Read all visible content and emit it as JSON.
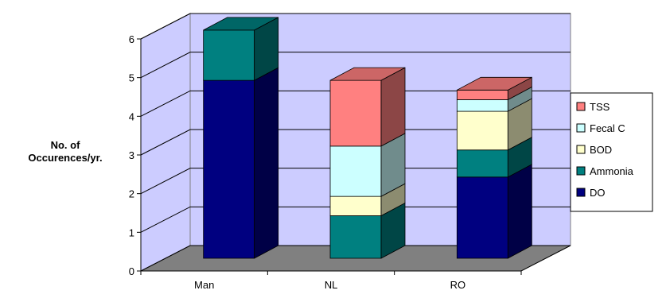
{
  "chart_data": {
    "type": "bar",
    "stacked": true,
    "three_d": true,
    "categories": [
      "Man",
      "NL",
      "RO"
    ],
    "series": [
      {
        "name": "DO",
        "color": "#000080",
        "values": [
          4.6,
          0,
          2.1
        ]
      },
      {
        "name": "Ammonia",
        "color": "#008080",
        "values": [
          1.3,
          1.1,
          0.7
        ]
      },
      {
        "name": "BOD",
        "color": "#ffffcc",
        "values": [
          0,
          0.5,
          1.0
        ]
      },
      {
        "name": "Fecal C",
        "color": "#ccffff",
        "values": [
          0,
          1.3,
          0.3
        ]
      },
      {
        "name": "TSS",
        "color": "#ff8080",
        "values": [
          0,
          1.7,
          0.25
        ]
      }
    ],
    "legend_order": [
      "TSS",
      "Fecal C",
      "BOD",
      "Ammonia",
      "DO"
    ],
    "title": "",
    "xlabel": "",
    "ylabel": "No. of Occurences/yr.",
    "ylim": [
      0,
      6
    ],
    "yticks": [
      "0",
      "1",
      "2",
      "3",
      "4",
      "5",
      "6"
    ],
    "grid": true,
    "legend_position": "right",
    "wall_color": "#ccccff",
    "floor_color": "#808080"
  }
}
